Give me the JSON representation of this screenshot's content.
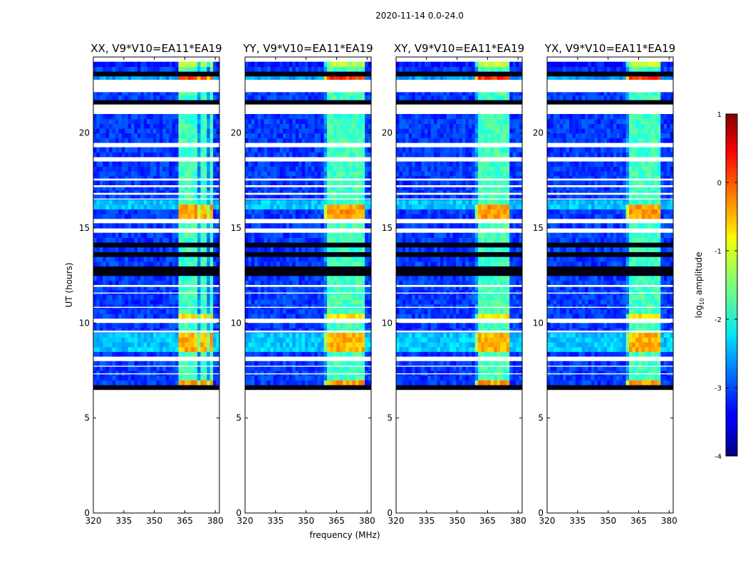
{
  "chart_data": {
    "type": "heatmap",
    "suptitle": "2020-11-14 0.0-24.0",
    "xlabel": "frequency (MHz)",
    "ylabel": "UT (hours)",
    "xlim": [
      320,
      382
    ],
    "ylim": [
      0,
      24
    ],
    "xticks": [
      320,
      335,
      350,
      365,
      380
    ],
    "yticks": [
      0,
      5,
      10,
      15,
      20
    ],
    "colorbar": {
      "label": "log10 amplitude",
      "label_main": "log",
      "label_sub": "10",
      "label_rest": " amplitude",
      "range": [
        -4,
        1
      ],
      "ticks": [
        -4,
        -3,
        -2,
        -1,
        0,
        1
      ],
      "colormap": "jet"
    },
    "panels": [
      {
        "title": "XX, V9*V10=EA11*EA19",
        "rfi_start_mhz": 361.5,
        "rfi_end_mhz": 378.5
      },
      {
        "title": "YY, V9*V10=EA11*EA19",
        "rfi_start_mhz": 359.5,
        "rfi_end_mhz": 378.5
      },
      {
        "title": "XY, V9*V10=EA11*EA19",
        "rfi_start_mhz": 359.5,
        "rfi_end_mhz": 376
      },
      {
        "title": "YX, V9*V10=EA11*EA19",
        "rfi_start_mhz": 359.5,
        "rfi_end_mhz": 376
      }
    ],
    "data_time_range_hours": [
      6.3,
      23.8
    ],
    "colors": {
      "axis": "#000000",
      "background": "#ffffff"
    }
  }
}
